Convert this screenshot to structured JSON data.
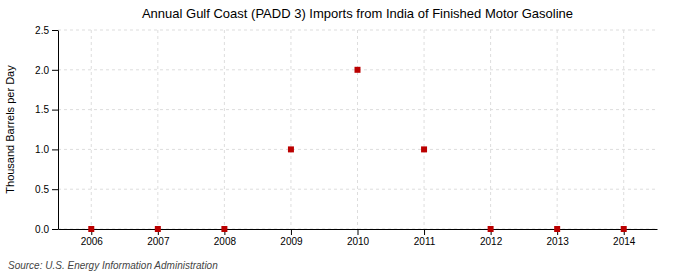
{
  "chart_data": {
    "type": "scatter",
    "title": "Annual Gulf Coast (PADD 3) Imports from India of Finished Motor Gasoline",
    "ylabel": "Thousand Barrels per Day",
    "annotations": [
      "Source: U.S. Energy Information Administration"
    ],
    "x": [
      2006,
      2007,
      2008,
      2009,
      2010,
      2011,
      2012,
      2013,
      2014
    ],
    "values": [
      0,
      0,
      0,
      1.0,
      2.0,
      1.0,
      0.0,
      0,
      0.0
    ],
    "color": "#bb0000",
    "marker": "square",
    "xlim": [
      2005.5,
      2014.5
    ],
    "ylim": [
      0,
      2.5
    ],
    "xticks": [
      2006,
      2007,
      2008,
      2009,
      2010,
      2011,
      2012,
      2013,
      2014
    ],
    "yticks": [
      {
        "value": 0.0,
        "label": "0.0"
      },
      0.5,
      {
        "value": 1.0,
        "label": "1.0"
      },
      1.5,
      {
        "value": 2.0,
        "label": "2.0"
      },
      {
        "value": 2.5,
        "label": "2.5"
      }
    ],
    "grid": true
  }
}
